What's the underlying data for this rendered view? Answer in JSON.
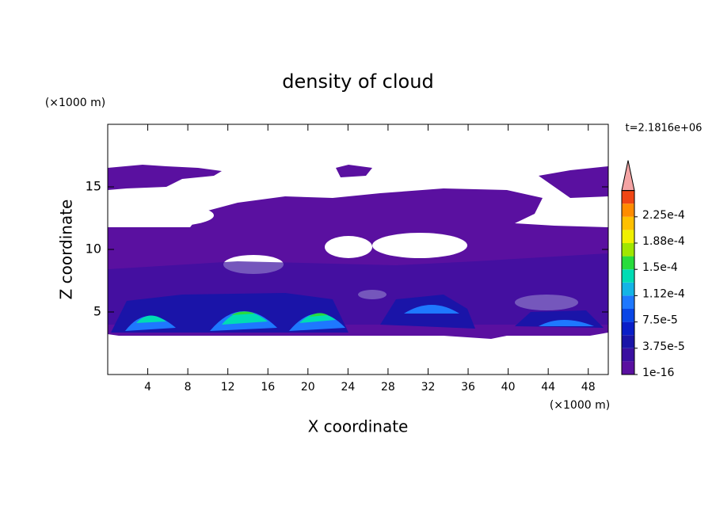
{
  "chart_data": {
    "type": "contour",
    "title": "density of cloud",
    "xlabel": "X coordinate",
    "ylabel": "Z coordinate",
    "x_unit": "(×1000 m)",
    "y_unit": "(×1000 m)",
    "time_label": "t=2.1816e+06",
    "xlim": [
      0,
      50
    ],
    "xticks": [
      4,
      8,
      12,
      16,
      20,
      24,
      28,
      32,
      36,
      40,
      44,
      48
    ],
    "ylim": [
      0,
      20
    ],
    "yticks": [
      5,
      10,
      15
    ],
    "colorbar": {
      "ticks": [
        {
          "value": 1e-16,
          "label": "1e-16"
        },
        {
          "value": 3.75e-05,
          "label": "3.75e-5"
        },
        {
          "value": 7.5e-05,
          "label": "7.5e-5"
        },
        {
          "value": 0.000112,
          "label": "1.12e-4"
        },
        {
          "value": 0.00015,
          "label": "1.5e-4"
        },
        {
          "value": 0.000188,
          "label": "1.88e-4"
        },
        {
          "value": 0.000225,
          "label": "2.25e-4"
        }
      ],
      "colors": [
        "#5a10a0",
        "#3a10a0",
        "#1a14a8",
        "#0a1ec8",
        "#0a46e6",
        "#1e78ff",
        "#14b4e6",
        "#00dcb4",
        "#28dc3c",
        "#a0e600",
        "#f0f000",
        "#ffc000",
        "#ff8c00",
        "#f04614"
      ],
      "extend_color": "#f4a4a4"
    }
  }
}
